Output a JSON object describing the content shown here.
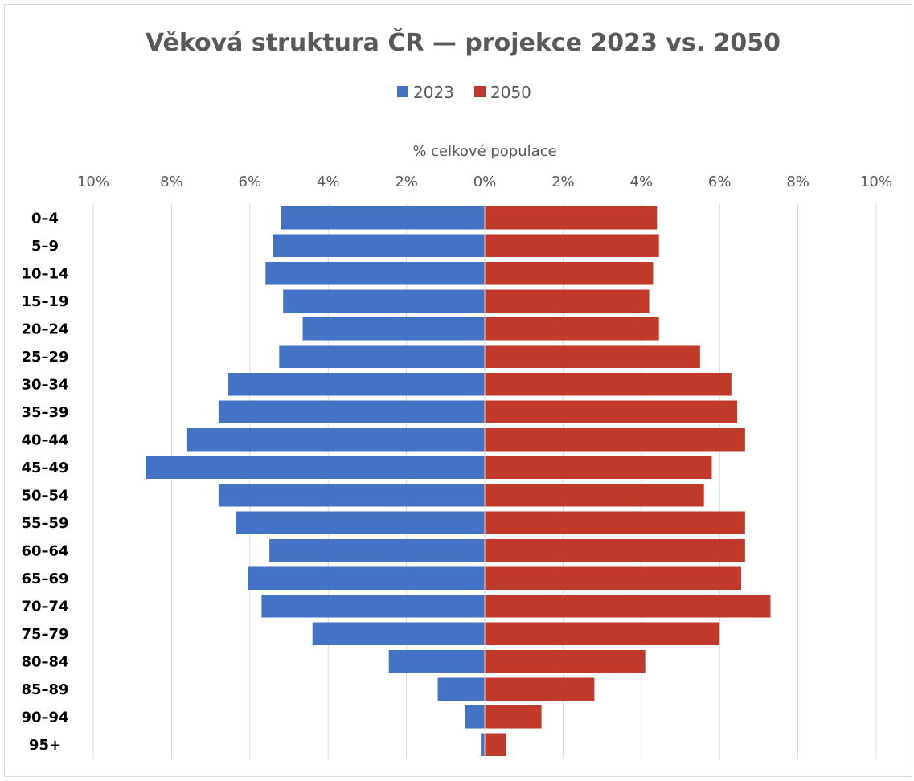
{
  "chart_data": {
    "type": "bar",
    "orientation": "horizontal",
    "title": "Věková struktura ČR — projekce 2023 vs. 2050",
    "xlabel": "% celkové populace",
    "ylabel": "",
    "xlim": [
      -10,
      10
    ],
    "x_ticks": [
      -10,
      -8,
      -6,
      -4,
      -2,
      0,
      2,
      4,
      6,
      8,
      10
    ],
    "x_tick_labels": [
      "10%",
      "8%",
      "6%",
      "4%",
      "2%",
      "0%",
      "2%",
      "4%",
      "6%",
      "8%",
      "10%"
    ],
    "grid": true,
    "legend_position": "top",
    "categories": [
      "0–4",
      "5–9",
      "10–14",
      "15–19",
      "20–24",
      "25–29",
      "30–34",
      "35–39",
      "40–44",
      "45–49",
      "50–54",
      "55–59",
      "60–64",
      "65–69",
      "70–74",
      "75–79",
      "80–84",
      "85–89",
      "90–94",
      "95+"
    ],
    "series": [
      {
        "name": "2023",
        "color": "#4472c4",
        "side": "left",
        "values": [
          5.2,
          5.4,
          5.6,
          5.15,
          4.65,
          5.25,
          6.55,
          6.8,
          7.6,
          8.65,
          6.8,
          6.35,
          5.5,
          6.05,
          5.7,
          4.4,
          2.45,
          1.2,
          0.5,
          0.1
        ]
      },
      {
        "name": "2050",
        "color": "#c0392b",
        "side": "right",
        "values": [
          4.4,
          4.45,
          4.3,
          4.2,
          4.45,
          5.5,
          6.3,
          6.45,
          6.65,
          5.8,
          5.6,
          6.65,
          6.65,
          6.55,
          7.3,
          6.0,
          4.1,
          2.8,
          1.45,
          0.55
        ]
      }
    ]
  }
}
